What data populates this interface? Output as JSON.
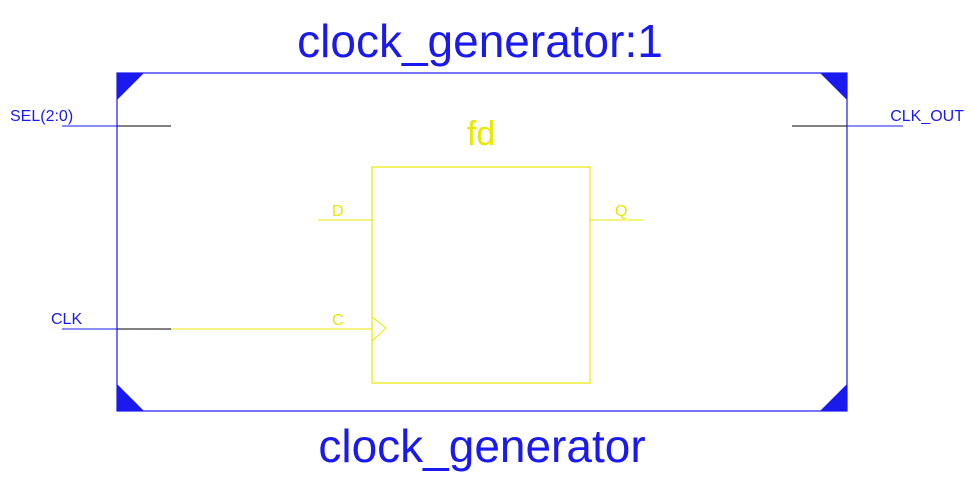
{
  "colors": {
    "module": "#1a1aee",
    "primitive": "#e8e800",
    "wire": "#000000"
  },
  "module": {
    "instance_name": "clock_generator:1",
    "type_name": "clock_generator",
    "ports": {
      "inputs": [
        "SEL(2:0)",
        "CLK"
      ],
      "outputs": [
        "CLK_OUT"
      ]
    }
  },
  "primitive": {
    "name": "fd",
    "pins": {
      "d": "D",
      "c": "C",
      "q": "Q"
    }
  }
}
